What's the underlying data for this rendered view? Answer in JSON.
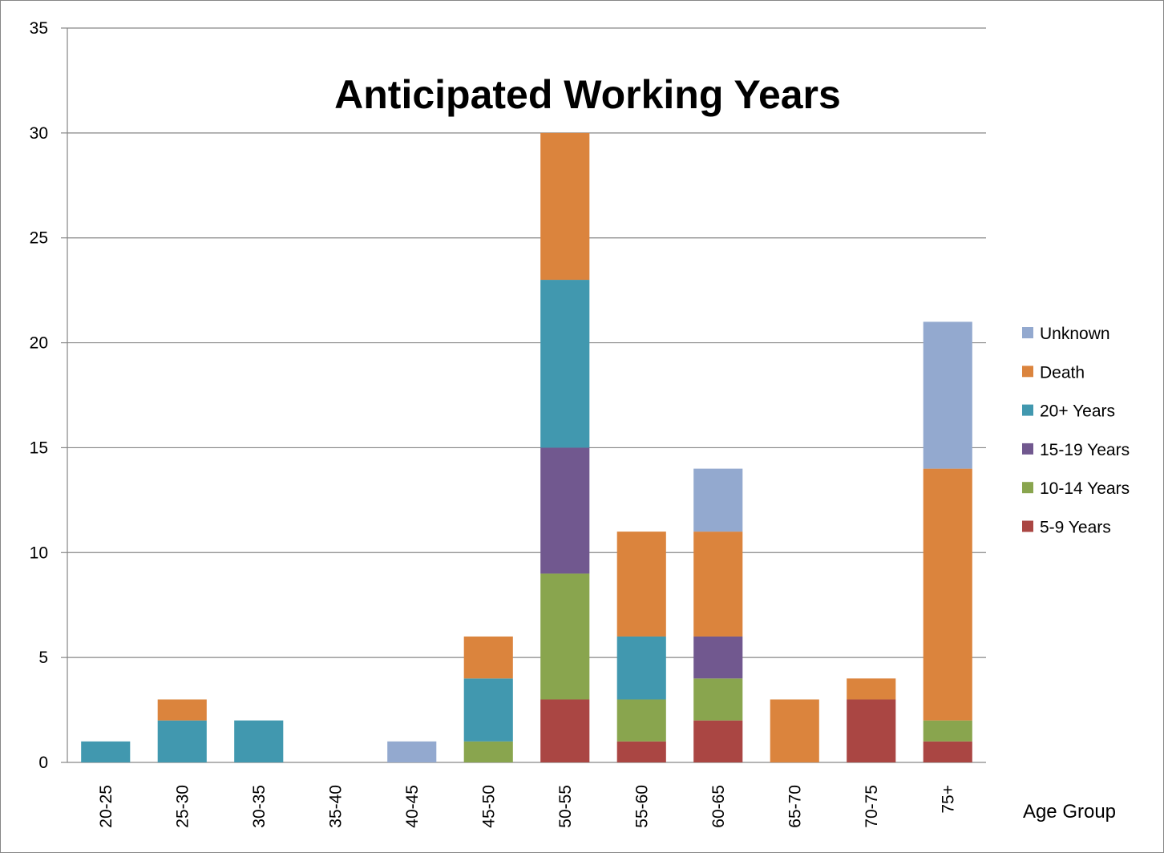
{
  "chart_data": {
    "type": "bar",
    "stacked": true,
    "title": "Anticipated Working Years",
    "xlabel": "Age Group",
    "ylabel": "",
    "ylim": [
      0,
      35
    ],
    "yticks": [
      0,
      5,
      10,
      15,
      20,
      25,
      30,
      35
    ],
    "grid": true,
    "legend_position": "right",
    "categories": [
      "20-25",
      "25-30",
      "30-35",
      "35-40",
      "40-45",
      "45-50",
      "50-55",
      "55-60",
      "60-65",
      "65-70",
      "70-75",
      "75+"
    ],
    "series": [
      {
        "name": "5-9 Years",
        "color": "#AA4643",
        "values": [
          0,
          0,
          0,
          0,
          0,
          0,
          3,
          1,
          2,
          0,
          3,
          1
        ]
      },
      {
        "name": "10-14 Years",
        "color": "#89A54E",
        "values": [
          0,
          0,
          0,
          0,
          0,
          1,
          6,
          2,
          2,
          0,
          0,
          1
        ]
      },
      {
        "name": "15-19 Years",
        "color": "#71588F",
        "values": [
          0,
          0,
          0,
          0,
          0,
          0,
          6,
          0,
          2,
          0,
          0,
          0
        ]
      },
      {
        "name": "20+ Years",
        "color": "#4198AF",
        "values": [
          1,
          2,
          2,
          0,
          0,
          3,
          8,
          3,
          0,
          0,
          0,
          0
        ]
      },
      {
        "name": "Death",
        "color": "#DB843D",
        "values": [
          0,
          1,
          0,
          0,
          0,
          2,
          7,
          5,
          5,
          3,
          1,
          12
        ]
      },
      {
        "name": "Unknown",
        "color": "#93A9CF",
        "values": [
          0,
          0,
          0,
          0,
          1,
          0,
          0,
          0,
          3,
          0,
          0,
          7
        ]
      }
    ]
  }
}
